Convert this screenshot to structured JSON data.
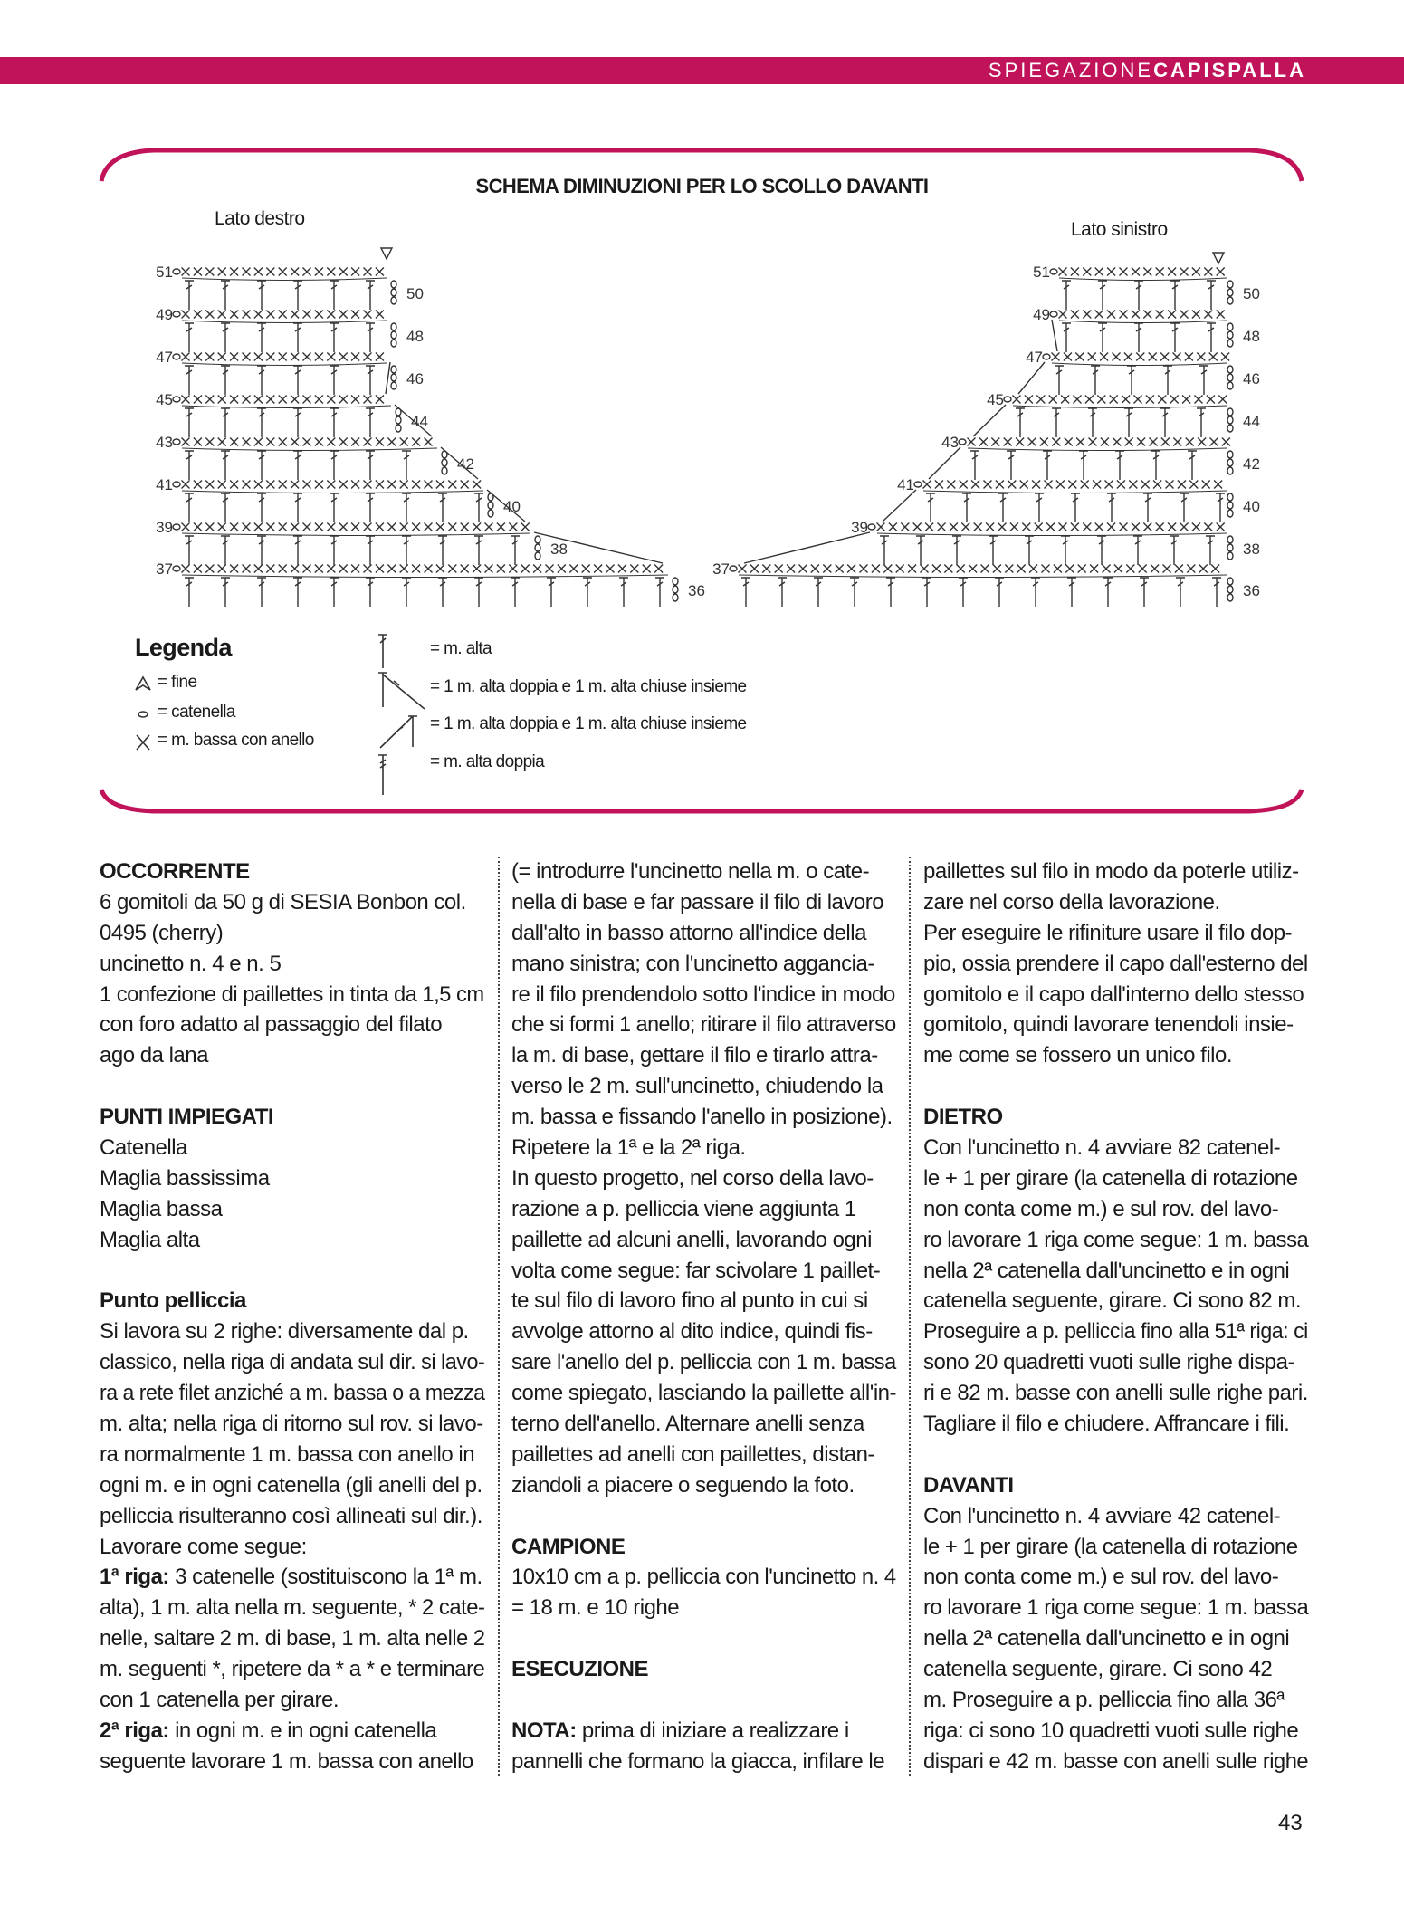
{
  "header": {
    "section_thin": "SPIEGAZIONE",
    "section_bold": "CAPISPALLA",
    "color": "#c0135a"
  },
  "diagram": {
    "title": "SCHEMA DIMINUZIONI PER LO SCOLLO DAVANTI",
    "left": {
      "label": "Lato destro",
      "odd_rows": [
        51,
        49,
        47,
        45,
        43,
        41,
        39,
        37
      ],
      "even_rows": [
        50,
        48,
        46,
        44,
        42,
        40,
        38,
        36
      ]
    },
    "right": {
      "label": "Lato sinistro",
      "odd_rows": [
        51,
        49,
        47,
        45,
        43,
        41,
        39,
        37
      ],
      "even_rows": [
        50,
        48,
        46,
        44,
        42,
        40,
        38,
        36
      ]
    }
  },
  "legend": {
    "title": "Legenda",
    "items": [
      {
        "icon": "end-triangle-icon",
        "text": "= fine"
      },
      {
        "icon": "chain-icon",
        "text": "= catenella"
      },
      {
        "icon": "loop-stitch-icon",
        "text": "= m. bassa con anello"
      },
      {
        "icon": "treble-icon",
        "text": "= m. alta"
      },
      {
        "icon": "dec-right-icon",
        "text": "= 1 m. alta doppia e 1 m. alta chiuse insieme"
      },
      {
        "icon": "dec-left-icon",
        "text": "= 1 m. alta doppia e 1 m. alta chiuse insieme"
      },
      {
        "icon": "double-treble-icon",
        "text": "= m. alta doppia"
      }
    ]
  },
  "columns": [
    [
      {
        "h": "OCCORRENTE"
      },
      "6 gomitoli da 50 g di SESIA Bonbon col.",
      "0495 (cherry)",
      "uncinetto n. 4 e n. 5",
      "1 confezione di paillettes in tinta da 1,5 cm",
      "con foro adatto al passaggio del filato",
      "ago da lana",
      "",
      {
        "h": "PUNTI IMPIEGATI"
      },
      "Catenella",
      "Maglia bassissima",
      "Maglia bassa",
      "Maglia alta",
      "",
      {
        "h": "Punto pelliccia"
      },
      "Si lavora su 2 righe: diversamente dal p.",
      "classico, nella riga di andata sul dir. si lavo-",
      "ra a rete filet anziché a m. bassa o a mezza",
      "m. alta; nella riga di ritorno sul rov. si lavo-",
      "ra normalmente 1 m. bassa con anello in",
      "ogni m. e in ogni catenella (gli anelli del p.",
      "pelliccia risulteranno così allineati sul dir.).",
      "Lavorare come segue:",
      {
        "b": "1ª riga:",
        "t": " 3 catenelle (sostituiscono la 1ª m."
      },
      "alta), 1 m. alta nella m. seguente, * 2 cate-",
      "nelle, saltare 2 m. di base, 1 m. alta nelle 2",
      "m. seguenti *, ripetere da * a * e terminare",
      "con 1 catenella per girare.",
      {
        "b": "2ª riga:",
        "t": " in ogni m. e in ogni catenella"
      },
      "seguente lavorare 1 m. bassa con anello"
    ],
    [
      "(= introdurre l'uncinetto nella m. o cate-",
      "nella di base e far passare il filo di lavoro",
      "dall'alto in basso attorno all'indice della",
      "mano sinistra; con l'uncinetto aggancia-",
      "re il filo prendendolo sotto l'indice in modo",
      "che si formi 1 anello; ritirare il filo attraverso",
      "la m. di base, gettare il filo e tirarlo attra-",
      "verso le 2 m. sull'uncinetto, chiudendo la",
      "m. bassa e fissando l'anello in posizione).",
      "Ripetere la 1ª e la 2ª riga.",
      "In questo progetto, nel corso della lavo-",
      "razione a p. pelliccia viene aggiunta 1",
      "paillette ad alcuni anelli, lavorando ogni",
      "volta come segue: far scivolare 1 paillet-",
      "te sul filo di lavoro fino al punto in cui si",
      "avvolge attorno al dito indice, quindi fis-",
      "sare l'anello del p. pelliccia con 1 m. bassa",
      "come spiegato, lasciando la paillette all'in-",
      "terno dell'anello. Alternare anelli senza",
      "paillettes ad anelli con paillettes, distan-",
      "ziandoli a piacere o seguendo la foto.",
      "",
      {
        "h": "CAMPIONE"
      },
      "10x10 cm a p. pelliccia con l'uncinetto n. 4",
      "= 18 m. e 10 righe",
      "",
      {
        "h": "ESECUZIONE"
      },
      "",
      {
        "b": "NOTA:",
        "t": " prima di iniziare a realizzare i"
      },
      "pannelli che formano la giacca, infilare le"
    ],
    [
      "paillettes sul filo in modo da poterle utiliz-",
      "zare nel corso della lavorazione.",
      "Per eseguire le rifiniture usare il filo dop-",
      "pio, ossia prendere il capo dall'esterno del",
      "gomitolo e il capo dall'interno dello stesso",
      "gomitolo, quindi lavorare tenendoli insie-",
      "me come se fossero un unico filo.",
      "",
      {
        "h": "DIETRO"
      },
      "Con l'uncinetto n. 4 avviare 82 catenel-",
      "le + 1 per girare (la catenella di rotazione",
      "non conta come m.) e sul rov. del lavo-",
      "ro lavorare 1 riga come segue: 1 m. bassa",
      "nella 2ª catenella dall'uncinetto e in ogni",
      "catenella seguente, girare. Ci sono 82 m.",
      "Proseguire a p. pelliccia fino alla 51ª riga: ci",
      "sono 20 quadretti vuoti sulle righe dispa-",
      "ri e 82 m. basse con anelli sulle righe pari.",
      "Tagliare il filo e chiudere. Affrancare i fili.",
      "",
      {
        "h": "DAVANTI"
      },
      "Con l'uncinetto n. 4 avviare 42 catenel-",
      "le + 1 per girare (la catenella di rotazione",
      "non conta come m.) e sul rov. del lavo-",
      "ro lavorare 1 riga come segue: 1 m. bassa",
      "nella 2ª catenella dall'uncinetto e in ogni",
      "catenella seguente, girare. Ci sono 42",
      "m. Proseguire a p. pelliccia fino alla 36ª",
      "riga: ci sono 10 quadretti vuoti sulle righe",
      "dispari e 42 m. basse con anelli sulle righe"
    ]
  ],
  "page_number": "43"
}
